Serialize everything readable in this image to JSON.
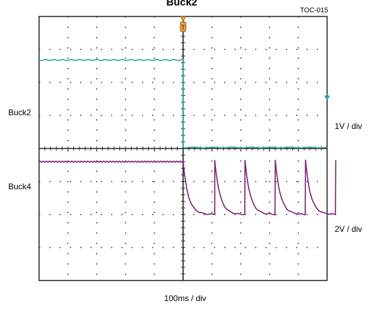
{
  "chart_data": {
    "type": "line",
    "title": "Buck2",
    "figure_id": "TOC-015",
    "time_scale": "100ms / div",
    "divisions": {
      "x": 10,
      "y": 8
    },
    "series": [
      {
        "name": "Buck2",
        "color": "#2aa6a8",
        "scale": "1V / div",
        "points_div": [
          [
            0,
            2.68
          ],
          [
            5.0,
            2.68
          ],
          [
            5.0,
            2.68
          ],
          [
            5.05,
            0.05
          ],
          [
            10,
            0.02
          ]
        ]
      },
      {
        "name": "Buck4",
        "color": "#7a1f78",
        "scale": "2V / div",
        "rise_at_div": [
          1.1,
          2.15,
          3.2,
          4.25,
          5.3
        ],
        "start_level_div": -0.4,
        "peak_level_div": -0.35,
        "valley_level_div": -2.0,
        "trigger_div": 5.0
      }
    ],
    "grid": true,
    "trigger_marker": "T"
  }
}
